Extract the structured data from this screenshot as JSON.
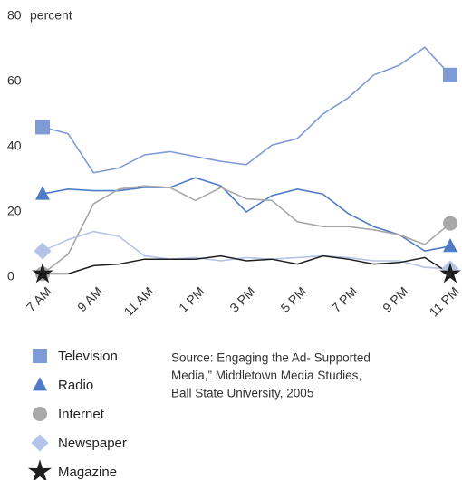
{
  "chart_data": {
    "type": "line",
    "y_label": "percent",
    "categories": [
      "7 AM",
      null,
      "9 AM",
      null,
      "11 AM",
      null,
      "1 PM",
      null,
      "3 PM",
      null,
      "5 PM",
      null,
      "7 PM",
      null,
      "9 PM",
      null,
      "11 PM"
    ],
    "series": [
      {
        "name": "Television",
        "color": "#7f9bd6",
        "marker": "square",
        "values": [
          46,
          44,
          32,
          33.5,
          37.5,
          38.5,
          37,
          35.5,
          34.5,
          40.5,
          42.5,
          50,
          55,
          62,
          65,
          70.5,
          62
        ]
      },
      {
        "name": "Radio",
        "color": "#4f7cc8",
        "marker": "triangle",
        "values": [
          25.5,
          27,
          26.5,
          26.5,
          27.5,
          27.5,
          30.5,
          28,
          20,
          25,
          27,
          25.5,
          19.5,
          15.5,
          13,
          8,
          9.5
        ]
      },
      {
        "name": "Internet",
        "color": "#a8a8a8",
        "marker": "circle",
        "values": [
          1,
          7,
          22.5,
          27,
          28,
          27.5,
          23.5,
          27.5,
          24,
          23.5,
          17,
          15.5,
          15.5,
          14.5,
          13,
          10,
          16.5
        ]
      },
      {
        "name": "Newspaper",
        "color": "#b3c4e8",
        "marker": "diamond",
        "values": [
          8,
          11.5,
          14,
          12.5,
          6.5,
          5.5,
          6,
          5,
          6,
          5.5,
          6,
          6.5,
          6,
          5,
          5,
          3,
          2.5
        ]
      },
      {
        "name": "Magazine",
        "color": "#1e1e1e",
        "marker": "star",
        "values": [
          1,
          1,
          3.5,
          4,
          5.5,
          5.5,
          5.5,
          6.5,
          5,
          5.5,
          4,
          6.5,
          5.5,
          4,
          4.5,
          6,
          1
        ]
      }
    ],
    "ylim": [
      0,
      80
    ],
    "yticks": [
      0,
      20,
      40,
      60,
      80
    ],
    "grid": false,
    "source": [
      "Source: Engaging the Ad- Supported",
      "Media,” Middletown Media Studies,",
      "Ball State University, 2005"
    ]
  }
}
